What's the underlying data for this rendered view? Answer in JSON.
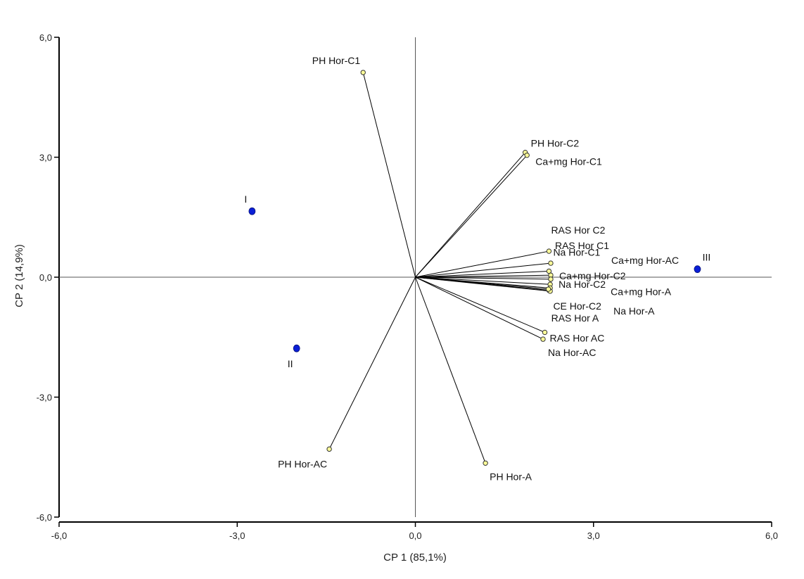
{
  "chart_data": {
    "type": "scatter",
    "subtype": "biplot",
    "title": "",
    "xlabel": "CP 1 (85,1%)",
    "ylabel": "CP 2 (14,9%)",
    "xlim": [
      -6,
      6
    ],
    "ylim": [
      -6,
      6
    ],
    "x_ticks": [
      -6,
      -3,
      0,
      3,
      6
    ],
    "y_ticks": [
      -6,
      -3,
      0,
      3,
      6
    ],
    "x_tick_labels": [
      "-6,0",
      "-3,0",
      "0,0",
      "3,0",
      "6,0"
    ],
    "y_tick_labels": [
      "-6,0",
      "-3,0",
      "0,0",
      "3,0",
      "6,0"
    ],
    "grid": false,
    "reference_lines": [
      0
    ],
    "colors": {
      "variable_fill": "#ffff99",
      "variable_stroke": "#333333",
      "observation_fill": "#0a1fd6",
      "vector_stroke": "#000000",
      "axis": "#000000",
      "zero_line": "#555555"
    },
    "variables": [
      {
        "name": "PH Hor-C1",
        "x": -0.88,
        "y": 5.12
      },
      {
        "name": "PH Hor-C2",
        "x": 1.85,
        "y": 3.12
      },
      {
        "name": "Ca+mg Hor-C1",
        "x": 1.88,
        "y": 3.05
      },
      {
        "name": "RAS Hor C2",
        "x": 2.25,
        "y": 0.65
      },
      {
        "name": "RAS Hor C1",
        "x": 2.28,
        "y": 0.35
      },
      {
        "name": "Na Hor-C1",
        "x": 2.25,
        "y": 0.15
      },
      {
        "name": "Ca+mg Hor-AC",
        "x": 2.28,
        "y": 0.05
      },
      {
        "name": "Ca+mg Hor-C2",
        "x": 2.28,
        "y": -0.05
      },
      {
        "name": "Na Hor-C2",
        "x": 2.27,
        "y": -0.18
      },
      {
        "name": "Ca+mg Hor-A",
        "x": 2.27,
        "y": -0.27
      },
      {
        "name": "CE Hor-C2",
        "x": 2.25,
        "y": -0.33
      },
      {
        "name": "Na Hor-A",
        "x": 2.27,
        "y": -0.35
      },
      {
        "name": "RAS Hor A",
        "x": 2.24,
        "y": -0.3
      },
      {
        "name": "RAS Hor AC",
        "x": 2.18,
        "y": -1.38
      },
      {
        "name": "Na Hor-AC",
        "x": 2.15,
        "y": -1.55
      },
      {
        "name": "PH Hor-AC",
        "x": -1.45,
        "y": -4.3
      },
      {
        "name": "PH Hor-A",
        "x": 1.18,
        "y": -4.65
      }
    ],
    "observations": [
      {
        "name": "I",
        "x": -2.75,
        "y": 1.65
      },
      {
        "name": "II",
        "x": -2.0,
        "y": -1.78
      },
      {
        "name": "III",
        "x": 4.75,
        "y": 0.2
      }
    ]
  }
}
